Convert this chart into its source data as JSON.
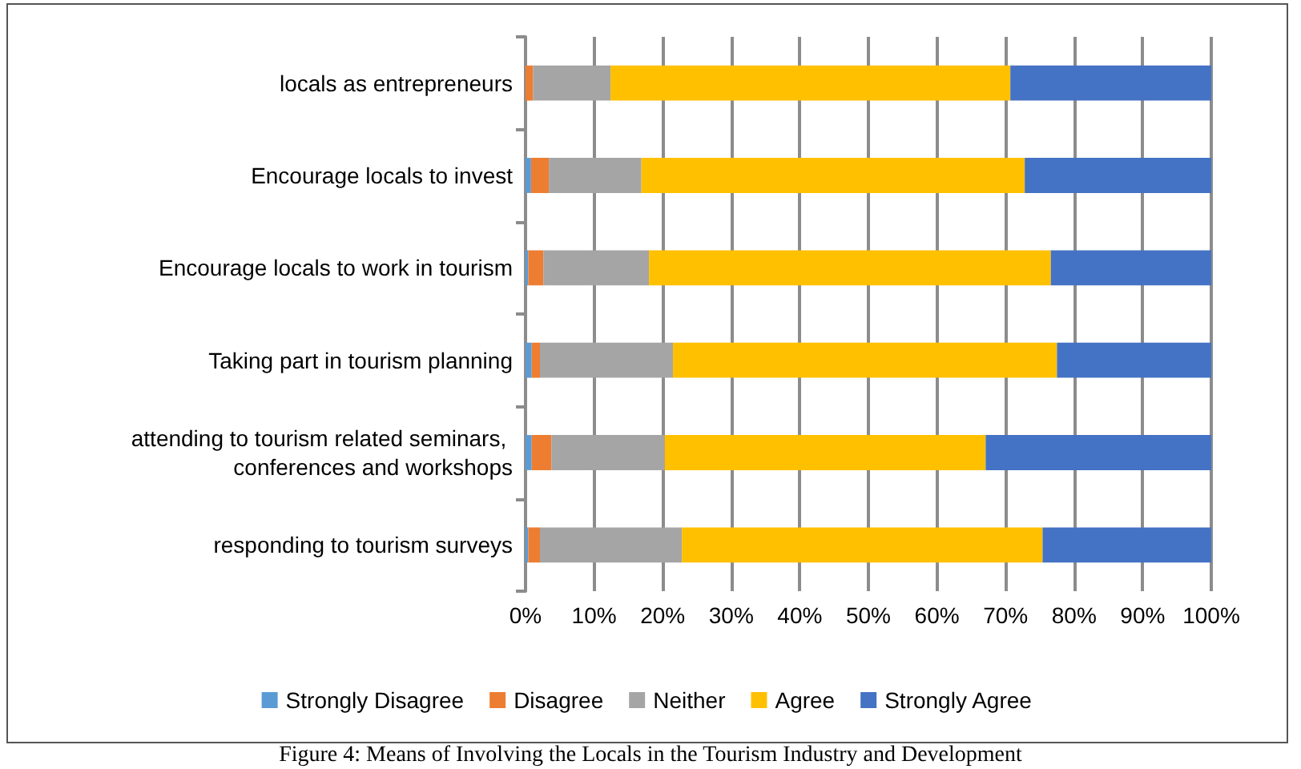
{
  "chart_data": {
    "type": "bar",
    "orientation": "horizontal",
    "stacked": true,
    "categories": [
      "locals as entrepreneurs",
      "Encourage locals to invest",
      "Encourage locals to work in tourism",
      "Taking part in tourism planning",
      "attending to tourism related seminars, conferences and workshops",
      "responding to tourism surveys"
    ],
    "series": [
      {
        "name": "Strongly Disagree",
        "color": "#5b9bd5",
        "values": [
          0,
          0.8,
          0.4,
          0.9,
          0.9,
          0.4
        ]
      },
      {
        "name": "Disagree",
        "color": "#ed7d31",
        "values": [
          1.1,
          2.6,
          2.2,
          1.2,
          2.9,
          1.7
        ]
      },
      {
        "name": "Neither",
        "color": "#a5a5a5",
        "values": [
          11.3,
          13.5,
          15.4,
          19.4,
          16.5,
          20.7
        ]
      },
      {
        "name": "Agree",
        "color": "#ffc000",
        "values": [
          58.3,
          55.9,
          58.6,
          56.0,
          46.8,
          52.6
        ]
      },
      {
        "name": "Strongly Agree",
        "color": "#4472c4",
        "values": [
          29.3,
          27.2,
          23.4,
          22.5,
          32.9,
          24.6
        ]
      }
    ],
    "xlim": [
      0,
      100
    ],
    "xticks": [
      {
        "value": 0,
        "label": "0%"
      },
      {
        "value": 10,
        "label": "10%"
      },
      {
        "value": 20,
        "label": "20%"
      },
      {
        "value": 30,
        "label": "30%"
      },
      {
        "value": 40,
        "label": "40%"
      },
      {
        "value": 50,
        "label": "50%"
      },
      {
        "value": 60,
        "label": "60%"
      },
      {
        "value": 70,
        "label": "70%"
      },
      {
        "value": 80,
        "label": "80%"
      },
      {
        "value": 90,
        "label": "90%"
      },
      {
        "value": 100,
        "label": "100%"
      }
    ],
    "grid": "x",
    "legend": "bottom",
    "annotations": [
      "Figure 4: Means of Involving the Locals in the Tourism Industry and Development"
    ]
  }
}
